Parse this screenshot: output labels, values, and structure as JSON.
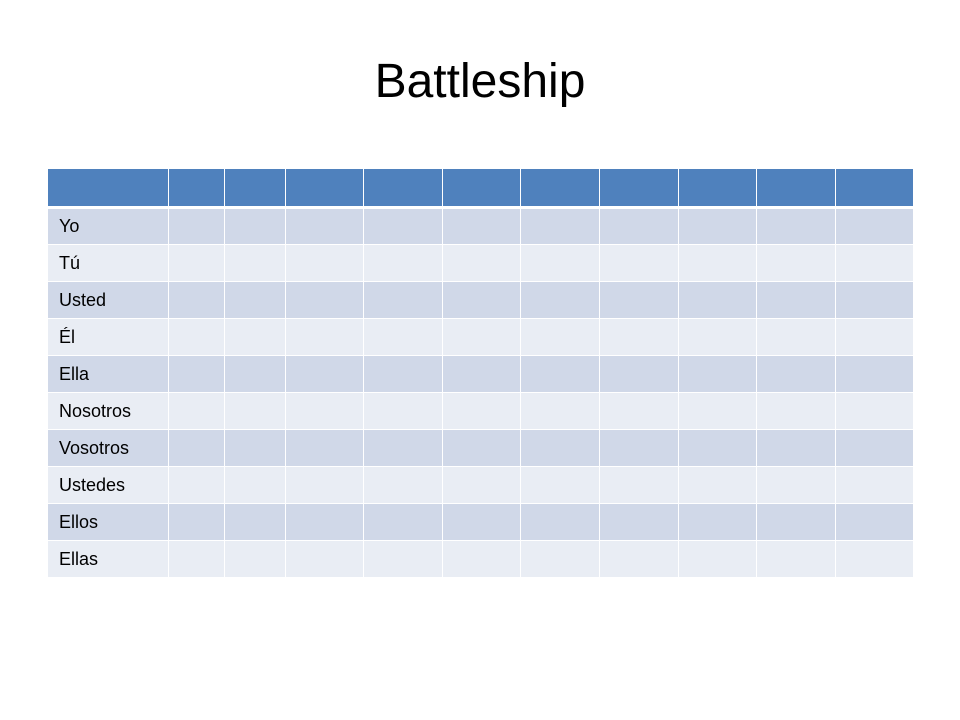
{
  "slide": {
    "title": "Battleship"
  },
  "table": {
    "header": [
      "",
      "",
      "",
      "",
      "",
      "",
      "",
      "",
      "",
      "",
      ""
    ],
    "rows": [
      {
        "label": "Yo"
      },
      {
        "label": "Tú"
      },
      {
        "label": "Usted"
      },
      {
        "label": "Él"
      },
      {
        "label": "Ella"
      },
      {
        "label": "Nosotros"
      },
      {
        "label": "Vosotros"
      },
      {
        "label": "Ustedes"
      },
      {
        "label": "Ellos"
      },
      {
        "label": "Ellas"
      }
    ],
    "colors": {
      "header": "#4f81bd",
      "band_dark": "#d0d8e8",
      "band_light": "#e9edf4"
    }
  }
}
